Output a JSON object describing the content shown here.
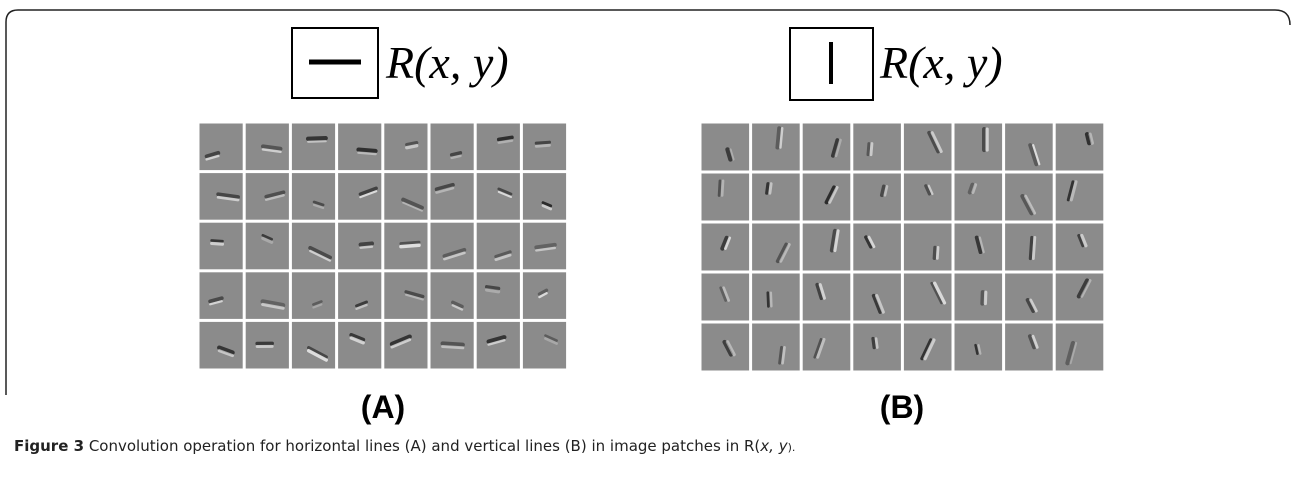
{
  "panels": [
    {
      "formula": "R(x, y)",
      "label": "(A)"
    },
    {
      "formula": "R(x, y)",
      "label": "(B)"
    }
  ],
  "caption": {
    "label": "Figure 3",
    "text": "Convolution operation for horizontal lines (A) and vertical lines (B) in image patches in R(",
    "italic": "x, y",
    "end": ")."
  }
}
